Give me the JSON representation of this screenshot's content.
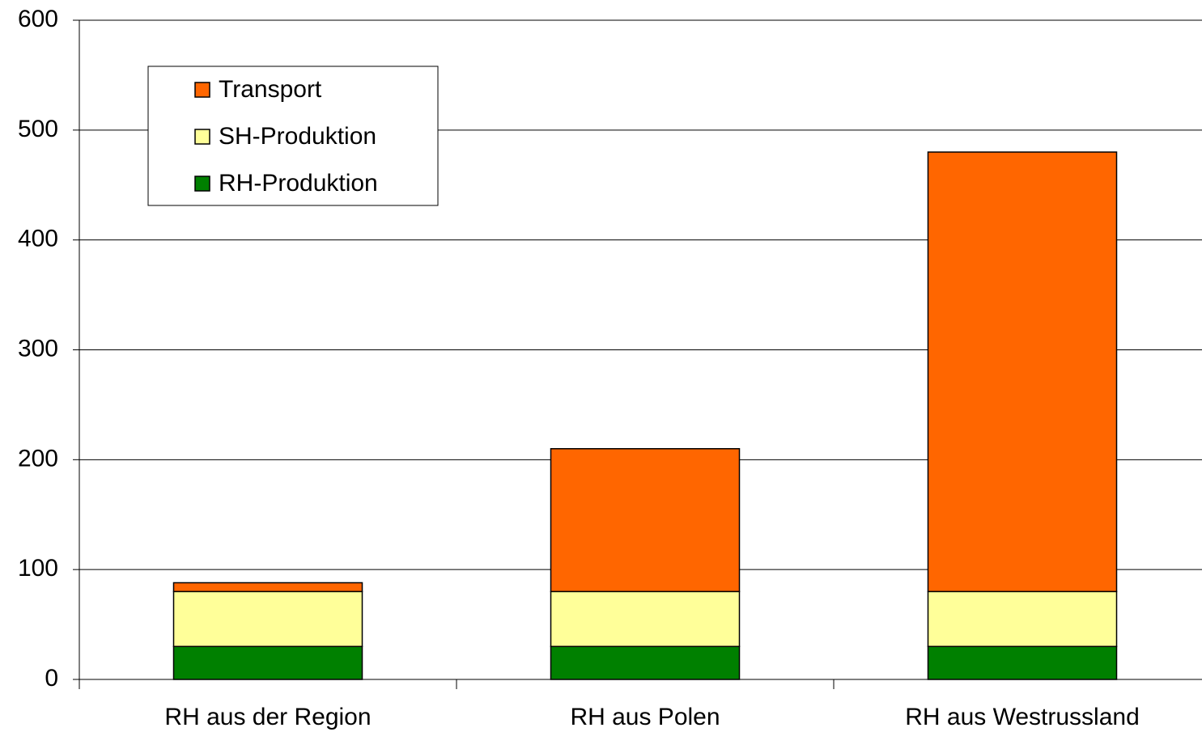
{
  "chart_data": {
    "type": "stacked_bar",
    "categories": [
      "RH aus der Region",
      "RH aus Polen",
      "RH aus Westrussland"
    ],
    "series": [
      {
        "name": "RH-Produktion",
        "color": "#008000",
        "values": [
          30,
          30,
          30
        ]
      },
      {
        "name": "SH-Produktion",
        "color": "#ffff99",
        "values": [
          50,
          50,
          50
        ]
      },
      {
        "name": "Transport",
        "color": "#ff6600",
        "values": [
          8,
          130,
          400
        ]
      }
    ],
    "ylim": [
      0,
      600
    ],
    "yticks": [
      0,
      100,
      200,
      300,
      400,
      500,
      600
    ],
    "grid": true,
    "legend": "upper left"
  }
}
